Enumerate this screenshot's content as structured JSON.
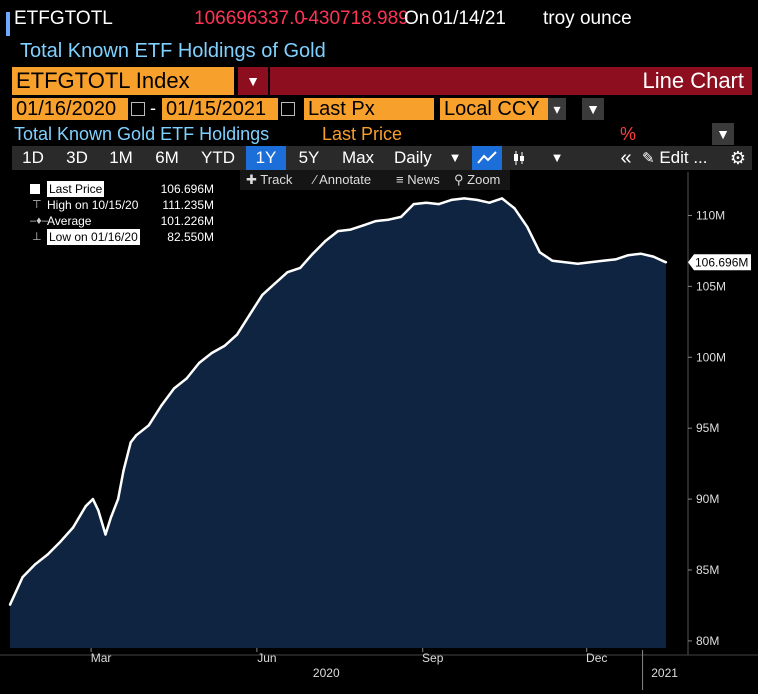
{
  "header": {
    "ticker": "ETFGTOTL",
    "last_value": "106696337.0",
    "change": "-430718.989",
    "on_label": "On",
    "date": "01/14/21",
    "unit": "troy ounce",
    "subtitle": "Total Known ETF Holdings of Gold",
    "index_name": "ETFGTOTL Index",
    "chart_type": "Line Chart"
  },
  "controls": {
    "start_date": "01/16/2020",
    "end_date": "01/15/2021",
    "date_sep": "-",
    "field": "Last Px",
    "currency": "Local CCY",
    "security_title": "Total Known Gold ETF Holdings",
    "field_title": "Last Price",
    "pct_label": "%"
  },
  "toolbar": {
    "ranges": [
      "1D",
      "3D",
      "1M",
      "6M",
      "YTD",
      "1Y",
      "5Y",
      "Max"
    ],
    "active_range": "1Y",
    "frequency": "Daily",
    "edit_label": "Edit ..."
  },
  "subtoolbar": {
    "track": "Track",
    "annotate": "Annotate",
    "news": "News",
    "zoom": "Zoom"
  },
  "legend": {
    "rows": [
      {
        "label": "Last Price",
        "value": "106.696M"
      },
      {
        "label": "High on 10/15/20",
        "value": "111.235M"
      },
      {
        "label": "Average",
        "value": "101.226M"
      },
      {
        "label": "Low on 01/16/20",
        "value": "82.550M"
      }
    ]
  },
  "colors": {
    "line": "#ffffff",
    "fill": "#0e2440",
    "background": "#000000",
    "accent_orange": "#f7a02c",
    "header_red": "#8d0f1f"
  },
  "chart_data": {
    "type": "area",
    "title": "Total Known Gold ETF Holdings",
    "series": [
      {
        "name": "Last Price",
        "x": [
          "2020-01-16",
          "2020-01-23",
          "2020-01-30",
          "2020-02-06",
          "2020-02-13",
          "2020-02-20",
          "2020-02-27",
          "2020-03-02",
          "2020-03-05",
          "2020-03-09",
          "2020-03-12",
          "2020-03-16",
          "2020-03-19",
          "2020-03-23",
          "2020-03-26",
          "2020-04-02",
          "2020-04-09",
          "2020-04-16",
          "2020-04-23",
          "2020-04-30",
          "2020-05-07",
          "2020-05-14",
          "2020-05-21",
          "2020-05-28",
          "2020-06-04",
          "2020-06-11",
          "2020-06-18",
          "2020-06-25",
          "2020-07-02",
          "2020-07-09",
          "2020-07-16",
          "2020-07-23",
          "2020-07-30",
          "2020-08-06",
          "2020-08-13",
          "2020-08-20",
          "2020-08-27",
          "2020-09-03",
          "2020-09-10",
          "2020-09-17",
          "2020-09-24",
          "2020-10-01",
          "2020-10-08",
          "2020-10-15",
          "2020-10-22",
          "2020-10-29",
          "2020-11-05",
          "2020-11-12",
          "2020-11-19",
          "2020-11-26",
          "2020-12-03",
          "2020-12-10",
          "2020-12-17",
          "2020-12-24",
          "2020-12-31",
          "2021-01-07",
          "2021-01-12",
          "2021-01-14"
        ],
        "y": [
          82.55,
          84.5,
          85.4,
          86.1,
          87.0,
          88.0,
          89.5,
          90.0,
          89.2,
          87.5,
          88.7,
          90.0,
          92.0,
          94.0,
          94.5,
          95.2,
          96.6,
          97.8,
          98.5,
          99.6,
          100.3,
          100.8,
          101.6,
          103.0,
          104.4,
          105.2,
          106.0,
          106.3,
          107.3,
          108.2,
          108.9,
          109.0,
          109.3,
          109.6,
          109.7,
          109.9,
          110.8,
          110.9,
          110.8,
          111.1,
          111.2,
          111.1,
          110.9,
          111.2,
          110.5,
          109.2,
          107.4,
          106.8,
          106.7,
          106.6,
          106.7,
          106.8,
          106.9,
          107.2,
          107.3,
          107.1,
          106.8,
          106.7
        ]
      }
    ],
    "x_ticks": [
      "Mar",
      "Jun",
      "Sep",
      "Dec"
    ],
    "x_years": [
      "2020",
      "2021"
    ],
    "y_ticks": [
      "80M",
      "85M",
      "90M",
      "95M",
      "100M",
      "105M",
      "110M"
    ],
    "y_tick_values": [
      80,
      85,
      90,
      95,
      100,
      105,
      110
    ],
    "ylim": [
      79.5,
      112.5
    ],
    "last_value_label": "106.696M",
    "grid": false
  }
}
